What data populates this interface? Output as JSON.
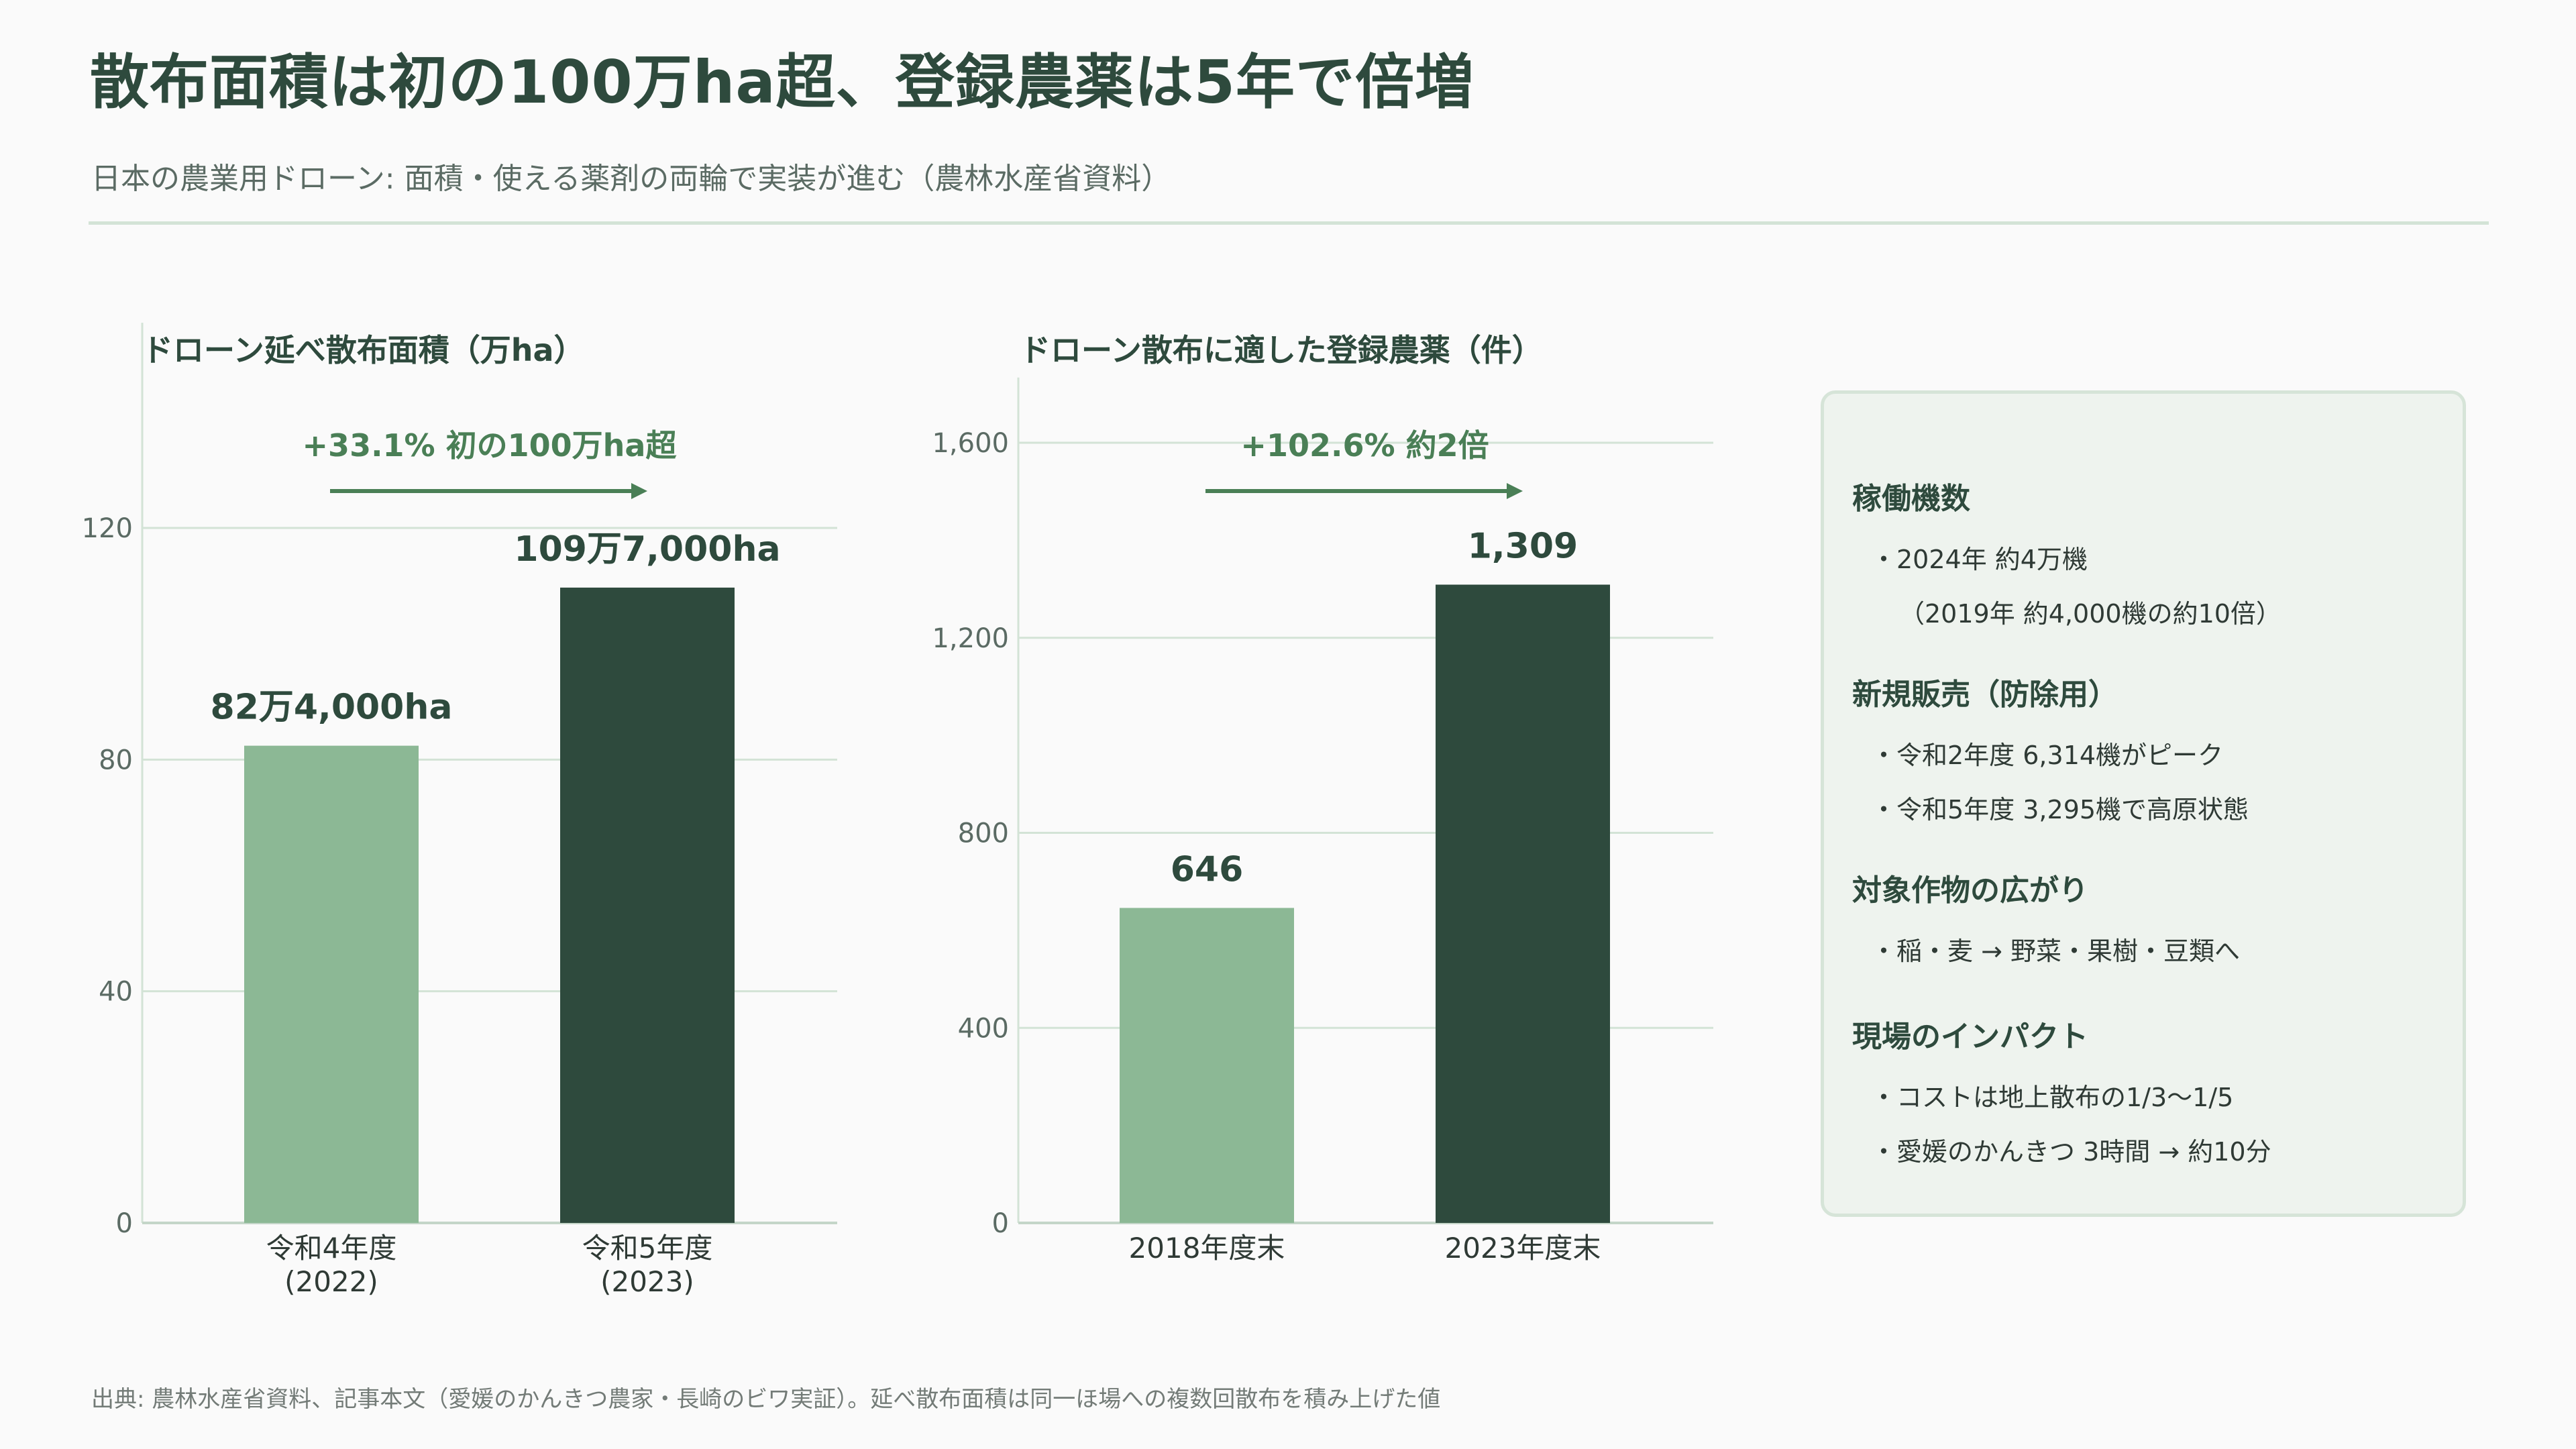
{
  "header": {
    "title": "散布面積は初の100万ha超、登録農薬は5年で倍増",
    "subtitle": "日本の農業用ドローン: 面積・使える薬剤の両輪で実装が進む（農林水産省資料）"
  },
  "colors": {
    "light_bar": "#8cb895",
    "dark_bar": "#2e4a3d",
    "accent": "#4a7f56",
    "grid": "#d3e3d6"
  },
  "chart_data": [
    {
      "type": "bar",
      "title": "ドローン延べ散布面積（万ha）",
      "categories": [
        "令和4年度\n(2022)",
        "令和5年度\n(2023)"
      ],
      "values": [
        82.4,
        109.7
      ],
      "value_labels": [
        "82万4,000ha",
        "109万7,000ha"
      ],
      "yticks": [
        0,
        40,
        80,
        120
      ],
      "ylim": [
        0,
        145
      ],
      "grid": true,
      "annotation": "+33.1%  初の100万ha超"
    },
    {
      "type": "bar",
      "title": "ドローン散布に適した登録農薬（件）",
      "categories": [
        "2018年度末",
        "2023年度末"
      ],
      "values": [
        646,
        1309
      ],
      "value_labels": [
        "646",
        "1,309"
      ],
      "yticks": [
        0,
        400,
        800,
        1200,
        1600
      ],
      "ytick_labels": [
        "0",
        "400",
        "800",
        "1,200",
        "1,600"
      ],
      "ylim": [
        0,
        1610
      ],
      "grid": true,
      "annotation": "+102.6%  約2倍"
    }
  ],
  "side_panel": {
    "sections": [
      {
        "heading": "稼働機数",
        "lines": [
          "・2024年 約4万機",
          "（2019年 約4,000機の約10倍）"
        ]
      },
      {
        "heading": "新規販売（防除用）",
        "lines": [
          "・令和2年度 6,314機がピーク",
          "・令和5年度 3,295機で高原状態"
        ]
      },
      {
        "heading": "対象作物の広がり",
        "lines": [
          "・稲・麦 → 野菜・果樹・豆類へ"
        ]
      },
      {
        "heading": "現場のインパクト",
        "lines": [
          "・コストは地上散布の1/3〜1/5",
          "・愛媛のかんきつ 3時間 → 約10分"
        ]
      }
    ]
  },
  "footer": "出典: 農林水産省資料、記事本文（愛媛のかんきつ農家・長崎のビワ実証）。延べ散布面積は同一ほ場への複数回散布を積み上げた値"
}
